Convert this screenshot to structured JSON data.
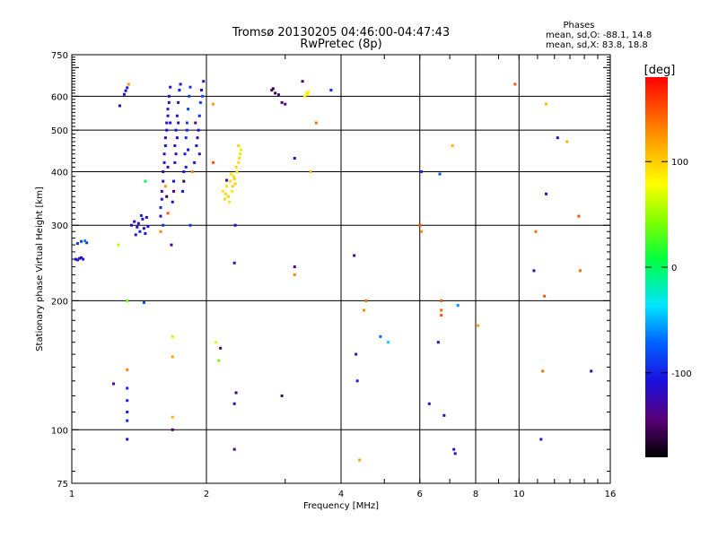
{
  "header": {
    "title": "Tromsø 20130205 04:46:00-04:47:43",
    "subtitle": "RwPretec (8p)",
    "stats_title": "Phases",
    "stats_o": "mean, sd,O: -88.1, 14.8",
    "stats_x": "mean, sd,X:  83.8, 18.8"
  },
  "colorbar": {
    "label": "[deg]",
    "ticks": [
      {
        "value": 100,
        "label": "100"
      },
      {
        "value": 0,
        "label": "0"
      },
      {
        "value": -100,
        "label": "-100"
      }
    ],
    "range": [
      -180,
      180
    ]
  },
  "chart_data": {
    "type": "scatter",
    "title": "Tromsø 20130205 04:46:00-04:47:43",
    "subtitle": "RwPretec (8p)",
    "xlabel": "Frequency [MHz]",
    "ylabel": "Stationary phase Virtual Height [km]",
    "xscale": "log",
    "yscale": "log",
    "xlim": [
      1,
      16
    ],
    "ylim": [
      75,
      750
    ],
    "xticks": [
      1,
      2,
      4,
      6,
      8,
      10,
      16
    ],
    "xtick_labels": [
      "1",
      "2",
      "4",
      "6",
      "8",
      "10",
      "16"
    ],
    "yticks": [
      75,
      100,
      200,
      300,
      400,
      500,
      600,
      750
    ],
    "ytick_labels": [
      "75",
      "100",
      "200",
      "300",
      "400",
      "500",
      "600",
      "750"
    ],
    "grid": true,
    "color_scale": "phase (deg), -180 to 180",
    "series": [
      {
        "points": [
          [
            1.02,
            250,
            -110
          ],
          [
            1.03,
            249,
            -112
          ],
          [
            1.04,
            251,
            -108
          ],
          [
            1.05,
            252,
            -115
          ],
          [
            1.06,
            250,
            -105
          ],
          [
            1.03,
            272,
            -95
          ],
          [
            1.05,
            275,
            -85
          ],
          [
            1.07,
            276,
            -60
          ],
          [
            1.08,
            273,
            -90
          ],
          [
            1.27,
            270,
            60
          ],
          [
            1.31,
            606,
            -110
          ],
          [
            1.32,
            618,
            -120
          ],
          [
            1.33,
            628,
            -100
          ],
          [
            1.34,
            640,
            120
          ],
          [
            1.28,
            570,
            -120
          ],
          [
            1.36,
            300,
            -120
          ],
          [
            1.38,
            306,
            -115
          ],
          [
            1.4,
            297,
            -110
          ],
          [
            1.42,
            290,
            -100
          ],
          [
            1.44,
            310,
            -105
          ],
          [
            1.46,
            287,
            -110
          ],
          [
            1.47,
            313,
            -115
          ],
          [
            1.48,
            298,
            -108
          ],
          [
            1.39,
            285,
            -120
          ],
          [
            1.43,
            316,
            -100
          ],
          [
            1.45,
            295,
            -112
          ],
          [
            1.41,
            303,
            -118
          ],
          [
            1.33,
            125,
            -100
          ],
          [
            1.33,
            117,
            -100
          ],
          [
            1.33,
            110,
            -100
          ],
          [
            1.33,
            105,
            -100
          ],
          [
            1.33,
            95,
            -110
          ],
          [
            1.33,
            138,
            130
          ],
          [
            1.33,
            200,
            40
          ],
          [
            1.45,
            198,
            -80
          ],
          [
            1.24,
            128,
            -130
          ],
          [
            1.46,
            380,
            0
          ]
        ]
      },
      {
        "points": [
          [
            1.58,
            315,
            -110
          ],
          [
            1.59,
            345,
            -115
          ],
          [
            1.6,
            380,
            -120
          ],
          [
            1.61,
            420,
            -110
          ],
          [
            1.62,
            460,
            -105
          ],
          [
            1.63,
            500,
            -112
          ],
          [
            1.64,
            540,
            -108
          ],
          [
            1.65,
            580,
            -115
          ],
          [
            1.66,
            630,
            -110
          ],
          [
            1.6,
            400,
            -140
          ],
          [
            1.61,
            440,
            -118
          ],
          [
            1.62,
            480,
            -125
          ],
          [
            1.63,
            520,
            -110
          ],
          [
            1.64,
            560,
            -100
          ],
          [
            1.65,
            600,
            -112
          ],
          [
            1.59,
            360,
            -120
          ],
          [
            1.58,
            330,
            -100
          ],
          [
            1.62,
            370,
            120
          ],
          [
            1.63,
            350,
            -160
          ],
          [
            1.64,
            410,
            -120
          ],
          [
            1.66,
            520,
            -115
          ],
          [
            1.6,
            300,
            -90
          ],
          [
            1.68,
            340,
            -120
          ],
          [
            1.69,
            380,
            -110
          ],
          [
            1.7,
            420,
            -115
          ],
          [
            1.7,
            460,
            -118
          ],
          [
            1.71,
            500,
            -105
          ],
          [
            1.72,
            540,
            -110
          ],
          [
            1.73,
            580,
            -112
          ],
          [
            1.74,
            620,
            -100
          ],
          [
            1.75,
            640,
            -108
          ],
          [
            1.69,
            360,
            -150
          ],
          [
            1.71,
            440,
            -130
          ],
          [
            1.72,
            480,
            -120
          ],
          [
            1.73,
            520,
            -115
          ],
          [
            1.77,
            360,
            -110
          ],
          [
            1.78,
            400,
            -105
          ],
          [
            1.79,
            440,
            -100
          ],
          [
            1.8,
            480,
            -95
          ],
          [
            1.81,
            520,
            -90
          ],
          [
            1.82,
            560,
            -85
          ],
          [
            1.83,
            600,
            -88
          ],
          [
            1.84,
            630,
            -92
          ],
          [
            1.8,
            410,
            -120
          ],
          [
            1.82,
            450,
            -110
          ],
          [
            1.78,
            380,
            -160
          ],
          [
            1.81,
            500,
            -100
          ],
          [
            1.88,
            420,
            -110
          ],
          [
            1.9,
            460,
            -105
          ],
          [
            1.92,
            500,
            -112
          ],
          [
            1.93,
            540,
            -100
          ],
          [
            1.94,
            580,
            -90
          ],
          [
            1.95,
            620,
            -108
          ],
          [
            1.91,
            480,
            -130
          ],
          [
            1.93,
            440,
            -120
          ],
          [
            1.96,
            600,
            -80
          ],
          [
            1.97,
            650,
            -110
          ],
          [
            1.86,
            400,
            130
          ],
          [
            1.89,
            520,
            -140
          ],
          [
            1.67,
            270,
            -130
          ],
          [
            1.68,
            165,
            60
          ],
          [
            1.68,
            148,
            120
          ],
          [
            1.68,
            107,
            110
          ],
          [
            1.68,
            100,
            -150
          ],
          [
            1.84,
            300,
            -90
          ],
          [
            1.58,
            290,
            130
          ],
          [
            1.64,
            320,
            150
          ]
        ]
      },
      {
        "points": [
          [
            2.18,
            360,
            90
          ],
          [
            2.2,
            345,
            95
          ],
          [
            2.22,
            370,
            92
          ],
          [
            2.24,
            350,
            98
          ],
          [
            2.26,
            380,
            90
          ],
          [
            2.28,
            360,
            88
          ],
          [
            2.3,
            390,
            95
          ],
          [
            2.32,
            375,
            100
          ],
          [
            2.34,
            400,
            92
          ],
          [
            2.36,
            420,
            95
          ],
          [
            2.38,
            440,
            90
          ],
          [
            2.36,
            460,
            100
          ],
          [
            2.33,
            410,
            93
          ],
          [
            2.29,
            370,
            97
          ],
          [
            2.25,
            340,
            88
          ],
          [
            2.21,
            355,
            96
          ],
          [
            2.27,
            395,
            92
          ],
          [
            2.31,
            385,
            98
          ],
          [
            2.37,
            430,
            94
          ],
          [
            2.39,
            450,
            91
          ],
          [
            2.07,
            575,
            120
          ],
          [
            2.1,
            160,
            70
          ],
          [
            2.13,
            145,
            40
          ],
          [
            2.15,
            155,
            -150
          ],
          [
            2.22,
            382,
            -140
          ],
          [
            2.32,
            300,
            -110
          ],
          [
            2.31,
            245,
            -120
          ],
          [
            2.33,
            122,
            -150
          ],
          [
            2.31,
            115,
            -120
          ],
          [
            2.31,
            90,
            -140
          ],
          [
            2.07,
            420,
            150
          ]
        ]
      },
      {
        "points": [
          [
            2.8,
            620,
            -150
          ],
          [
            2.85,
            610,
            -160
          ],
          [
            2.9,
            605,
            -140
          ],
          [
            2.95,
            580,
            -150
          ],
          [
            3.0,
            575,
            -140
          ],
          [
            2.82,
            625,
            -155
          ],
          [
            3.15,
            430,
            -120
          ],
          [
            3.15,
            240,
            -140
          ],
          [
            3.15,
            230,
            130
          ],
          [
            2.95,
            120,
            -150
          ],
          [
            3.28,
            650,
            -150
          ],
          [
            3.32,
            600,
            80
          ],
          [
            3.35,
            610,
            90
          ],
          [
            3.38,
            615,
            85
          ],
          [
            3.37,
            605,
            88
          ],
          [
            3.42,
            400,
            110
          ],
          [
            3.52,
            520,
            140
          ],
          [
            3.8,
            620,
            -100
          ],
          [
            4.28,
            255,
            -130
          ],
          [
            4.32,
            150,
            -120
          ],
          [
            4.35,
            130,
            -100
          ],
          [
            4.5,
            190,
            130
          ],
          [
            4.55,
            200,
            140
          ],
          [
            4.9,
            165,
            -70
          ],
          [
            4.4,
            85,
            120
          ],
          [
            5.1,
            160,
            -40
          ],
          [
            6.0,
            300,
            150
          ],
          [
            6.05,
            290,
            130
          ],
          [
            6.05,
            400,
            -100
          ],
          [
            6.6,
            160,
            -120
          ],
          [
            6.65,
            395,
            -80
          ],
          [
            6.7,
            200,
            150
          ],
          [
            6.7,
            190,
            140
          ],
          [
            6.7,
            185,
            150
          ],
          [
            6.8,
            108,
            -120
          ],
          [
            6.3,
            115,
            -120
          ],
          [
            7.1,
            460,
            110
          ],
          [
            7.15,
            90,
            -110
          ],
          [
            7.2,
            88,
            -110
          ],
          [
            7.3,
            195,
            -60
          ],
          [
            8.1,
            175,
            120
          ],
          [
            9.8,
            640,
            150
          ],
          [
            10.9,
            290,
            140
          ],
          [
            10.8,
            235,
            -120
          ],
          [
            11.5,
            575,
            110
          ],
          [
            11.5,
            355,
            -120
          ],
          [
            11.4,
            205,
            150
          ],
          [
            11.3,
            137,
            140
          ],
          [
            11.2,
            95,
            -100
          ],
          [
            12.8,
            470,
            110
          ],
          [
            12.2,
            480,
            -120
          ],
          [
            13.6,
            315,
            150
          ],
          [
            13.7,
            235,
            140
          ],
          [
            14.5,
            137,
            -120
          ]
        ]
      }
    ]
  }
}
